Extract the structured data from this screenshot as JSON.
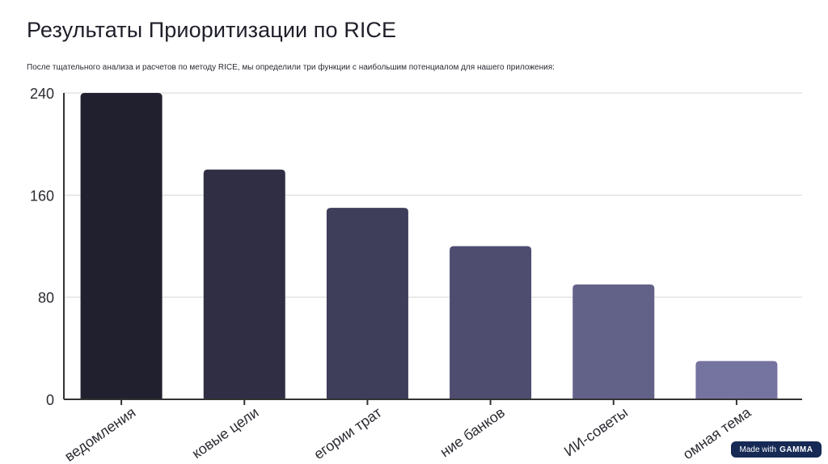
{
  "page": {
    "title": "Результаты Приоритизации по RICE",
    "subtitle": "После тщательного анализа и расчетов по методу RICE, мы определили три функции с наибольшим потенциалом для нашего приложения:"
  },
  "badge": {
    "prefix": "Made with",
    "brand": "GAMMA"
  },
  "chart_data": {
    "type": "bar",
    "categories": [
      "ведомления",
      "ковые цели",
      "егории трат",
      "ние банков",
      "ИИ-советы",
      "омная тема"
    ],
    "values": [
      240,
      180,
      150,
      120,
      90,
      30
    ],
    "yticks": [
      0,
      80,
      160,
      240
    ],
    "ylim": [
      0,
      240
    ],
    "grid": true,
    "xlabel": "",
    "ylabel": "",
    "colors": [
      "#21202e",
      "#2f2e44",
      "#3e3d5a",
      "#4e4d70",
      "#626188",
      "#75739f"
    ]
  }
}
